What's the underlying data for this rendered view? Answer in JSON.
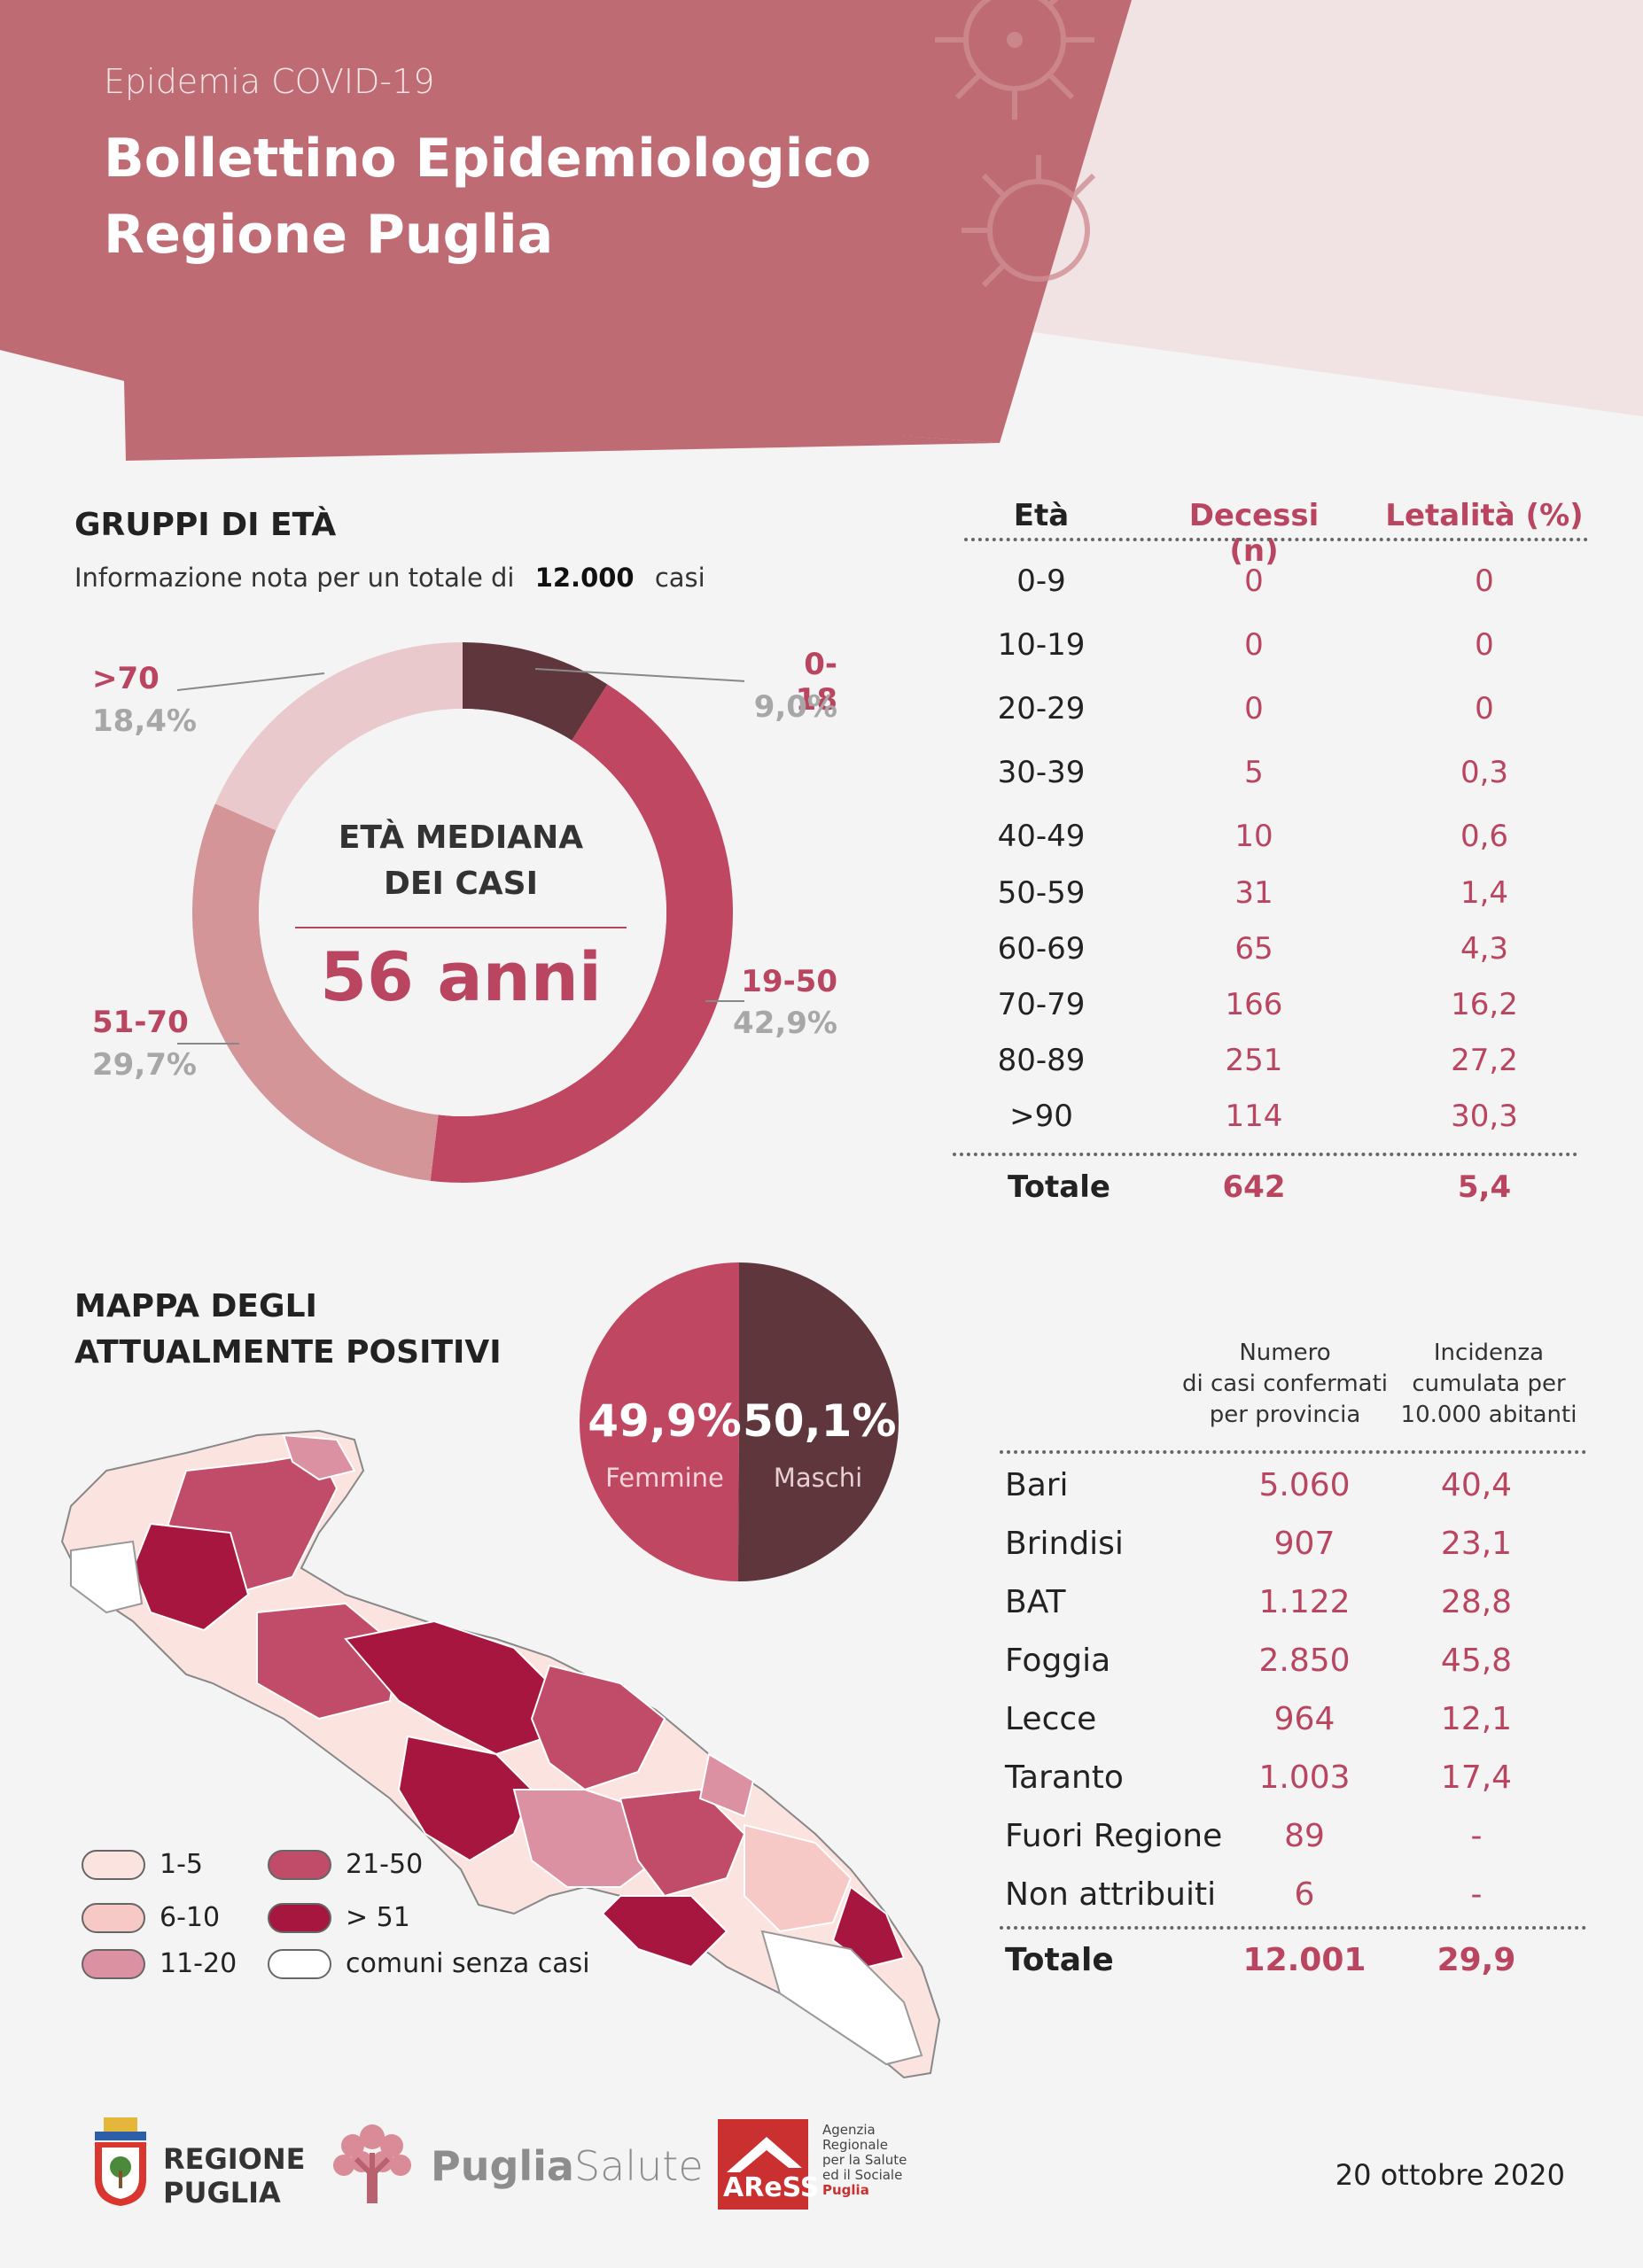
{
  "header": {
    "subtitle": "Epidemia COVID-19",
    "title_line1": "Bollettino Epidemiologico",
    "title_line2": "Regione Puglia"
  },
  "age_groups": {
    "title": "GRUPPI DI ETÀ",
    "info_prefix": "Informazione nota per un totale di",
    "info_total": "12.000",
    "info_suffix": "casi",
    "median_line1": "ETÀ MEDIANA",
    "median_line2": "DEI CASI",
    "median_value": "56 anni"
  },
  "chart_data": [
    {
      "type": "pie",
      "categories": [
        "0-18",
        "19-50",
        "51-70",
        ">70"
      ],
      "values": [
        9.0,
        42.9,
        29.7,
        18.4
      ],
      "value_labels": [
        "9,0%",
        "42,9%",
        "29,7%",
        "18,4%"
      ],
      "colors": [
        "#5e363c",
        "#bf4762",
        "#d39598",
        "#e9c9cb"
      ]
    },
    {
      "type": "pie",
      "categories": [
        "Femmine",
        "Maschi"
      ],
      "values": [
        49.9,
        50.1
      ],
      "value_labels": [
        "49,9%",
        "50,1%"
      ],
      "colors": [
        "#bf4762",
        "#5e363c"
      ]
    }
  ],
  "deaths_table": {
    "headers": [
      "Età",
      "Decessi (n)",
      "Letalità (%)"
    ],
    "rows": [
      [
        "0-9",
        "0",
        "0"
      ],
      [
        "10-19",
        "0",
        "0"
      ],
      [
        "20-29",
        "0",
        "0"
      ],
      [
        "30-39",
        "5",
        "0,3"
      ],
      [
        "40-49",
        "10",
        "0,6"
      ],
      [
        "50-59",
        "31",
        "1,4"
      ],
      [
        "60-69",
        "65",
        "4,3"
      ],
      [
        "70-79",
        "166",
        "16,2"
      ],
      [
        "80-89",
        "251",
        "27,2"
      ],
      [
        ">90",
        "114",
        "30,3"
      ]
    ],
    "total": [
      "Totale",
      "642",
      "5,4"
    ]
  },
  "map": {
    "title_line1": "MAPPA DEGLI",
    "title_line2": "ATTUALMENTE POSITIVI",
    "legend": [
      {
        "label": "1-5",
        "color": "#fbe3df"
      },
      {
        "label": "6-10",
        "color": "#f6c9c6"
      },
      {
        "label": "11-20",
        "color": "#dc91a3"
      },
      {
        "label": "21-50",
        "color": "#c14c69"
      },
      {
        "label": "> 51",
        "color": "#a6163f"
      },
      {
        "label": "comuni senza casi",
        "color": "#ffffff"
      }
    ]
  },
  "province_table": {
    "col1_header": [
      "Numero",
      "di casi confermati",
      "per provincia"
    ],
    "col2_header": [
      "Incidenza",
      "cumulata per",
      "10.000 abitanti"
    ],
    "rows": [
      [
        "Bari",
        "5.060",
        "40,4"
      ],
      [
        "Brindisi",
        "907",
        "23,1"
      ],
      [
        "BAT",
        "1.122",
        "28,8"
      ],
      [
        "Foggia",
        "2.850",
        "45,8"
      ],
      [
        "Lecce",
        "964",
        "12,1"
      ],
      [
        "Taranto",
        "1.003",
        "17,4"
      ],
      [
        "Fuori Regione",
        "89",
        "-"
      ],
      [
        "Non attribuiti",
        "6",
        "-"
      ]
    ],
    "total": [
      "Totale",
      "12.001",
      "29,9"
    ]
  },
  "footer": {
    "regione_line1": "REGIONE",
    "regione_line2": "PUGLIA",
    "puglia": "Puglia",
    "salute": "Salute",
    "aress": "AReSS",
    "aress_desc": [
      "Agenzia",
      "Regionale",
      "per la Salute",
      "ed il Sociale",
      "Puglia"
    ],
    "date": "20 ottobre 2020"
  }
}
